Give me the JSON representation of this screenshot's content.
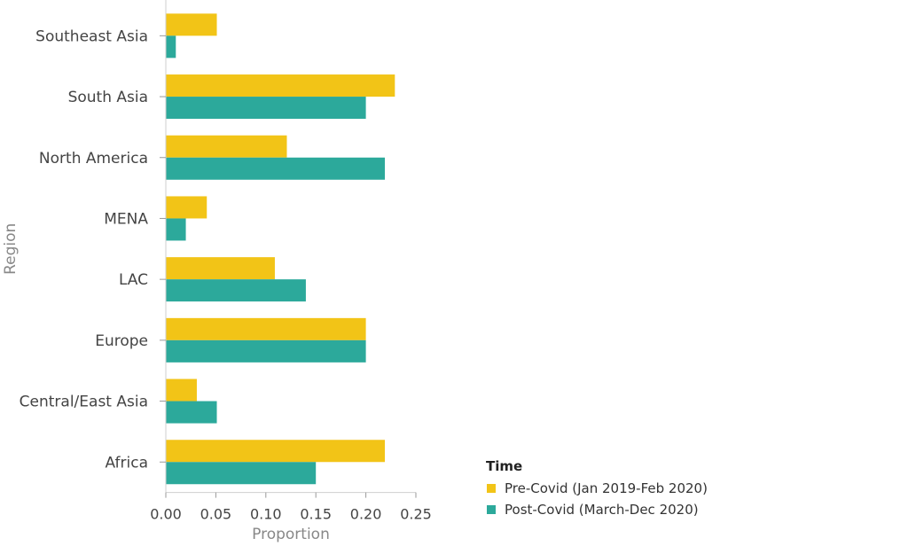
{
  "chart_data": {
    "type": "bar",
    "orientation": "horizontal",
    "title": "",
    "xlabel": "Proportion",
    "ylabel": "Region",
    "xlim": [
      0,
      0.25
    ],
    "xticks": [
      0.0,
      0.05,
      0.1,
      0.15,
      0.2,
      0.25
    ],
    "xtick_labels": [
      "0.00",
      "0.05",
      "0.10",
      "0.15",
      "0.20",
      "0.25"
    ],
    "categories": [
      "Southeast Asia",
      "South Asia",
      "North America",
      "MENA",
      "LAC",
      "Europe",
      "Central/East Asia",
      "Africa"
    ],
    "series": [
      {
        "name": "Pre-Covid (Jan 2019-Feb 2020)",
        "color": "#F2C417",
        "values": [
          0.051,
          0.229,
          0.121,
          0.041,
          0.109,
          0.2,
          0.031,
          0.219
        ]
      },
      {
        "name": "Post-Covid (March-Dec 2020)",
        "color": "#2CA99B",
        "values": [
          0.01,
          0.2,
          0.219,
          0.02,
          0.14,
          0.2,
          0.051,
          0.15
        ]
      }
    ],
    "legend": {
      "title": "Time",
      "position": "bottom-right"
    },
    "grid": false
  }
}
